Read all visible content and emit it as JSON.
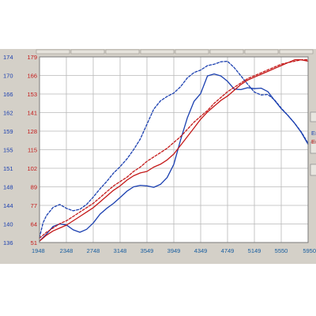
{
  "window": {
    "background": "#d4d0c8",
    "plot_background": "#ffffff"
  },
  "legend": {
    "items": [
      {
        "label": "Eı",
        "color": "#1a3fb0"
      },
      {
        "label": "Eı",
        "color": "#c41818"
      }
    ]
  },
  "chart_data": {
    "type": "line",
    "title": "",
    "xlabel": "",
    "ylabel": "",
    "grid": true,
    "x_ticks": [
      "1948",
      "2348",
      "2748",
      "3148",
      "3549",
      "3949",
      "4349",
      "4749",
      "5149",
      "5550",
      "5950"
    ],
    "x_range": [
      1948,
      5950
    ],
    "y_left_ticks": [
      "136",
      "140",
      "144",
      "148",
      "151",
      "155",
      "159",
      "162",
      "166",
      "170",
      "174"
    ],
    "y_left_range": [
      136,
      174
    ],
    "y_left_color": "#1a3fb0",
    "y_right_ticks": [
      "51",
      "64",
      "77",
      "89",
      "102",
      "115",
      "128",
      "141",
      "153",
      "166",
      "179"
    ],
    "y_right_range": [
      51,
      179
    ],
    "y_right_color": "#c41818",
    "series": [
      {
        "axis": "left",
        "color": "#1a3fb0",
        "style": "solid",
        "x": [
          1948,
          2050,
          2150,
          2250,
          2348,
          2450,
          2550,
          2650,
          2748,
          2850,
          2950,
          3050,
          3148,
          3250,
          3350,
          3450,
          3549,
          3650,
          3750,
          3850,
          3949,
          4050,
          4150,
          4250,
          4349,
          4450,
          4550,
          4650,
          4749,
          4850,
          4950,
          5050,
          5149,
          5250,
          5350,
          5450,
          5550,
          5650,
          5750,
          5850,
          5950
        ],
        "y": [
          136.3,
          137.7,
          139.3,
          139.8,
          139.6,
          138.6,
          138.1,
          138.7,
          140.0,
          141.8,
          143.0,
          144.0,
          145.2,
          146.5,
          147.4,
          147.7,
          147.6,
          147.3,
          147.9,
          149.3,
          152.0,
          157.0,
          161.5,
          164.9,
          166.5,
          170.1,
          170.5,
          170.1,
          169.0,
          167.4,
          167.3,
          167.7,
          167.5,
          167.6,
          166.9,
          165.1,
          163.4,
          162.0,
          160.4,
          158.5,
          156.1
        ]
      },
      {
        "axis": "left",
        "color": "#1a3fb0",
        "style": "dashed",
        "x": [
          1948,
          2000,
          2050,
          2150,
          2250,
          2348,
          2450,
          2550,
          2650,
          2748,
          2850,
          2950,
          3050,
          3148,
          3250,
          3350,
          3450,
          3549,
          3650,
          3750,
          3850,
          3949,
          4050,
          4150,
          4250,
          4349,
          4450,
          4550,
          4650,
          4749,
          4850,
          4950,
          5050,
          5149,
          5250,
          5350,
          5450,
          5550,
          5650,
          5750,
          5850,
          5950
        ],
        "y": [
          137.0,
          140.0,
          141.5,
          143.2,
          143.8,
          143.0,
          142.5,
          142.8,
          143.8,
          145.3,
          147.0,
          148.5,
          150.2,
          151.5,
          153.1,
          155.0,
          157.2,
          160.2,
          163.3,
          165.0,
          165.9,
          166.6,
          167.9,
          169.7,
          170.8,
          171.3,
          172.2,
          172.5,
          173.0,
          173.1,
          171.8,
          170.1,
          168.4,
          166.8,
          166.2,
          166.3,
          165.2,
          163.5,
          162.0,
          160.4,
          158.6,
          156.3
        ]
      },
      {
        "axis": "right",
        "color": "#c41818",
        "style": "solid",
        "x": [
          1948,
          2050,
          2150,
          2250,
          2348,
          2450,
          2550,
          2650,
          2748,
          2850,
          2950,
          3050,
          3148,
          3250,
          3350,
          3450,
          3549,
          3650,
          3750,
          3850,
          3949,
          4050,
          4150,
          4250,
          4349,
          4450,
          4550,
          4650,
          4749,
          4850,
          4950,
          5050,
          5149,
          5250,
          5350,
          5450,
          5550,
          5650,
          5750,
          5850,
          5950
        ],
        "y": [
          52,
          56,
          59,
          61,
          63,
          66,
          69,
          72,
          75,
          79,
          83,
          87,
          90,
          94,
          97,
          99,
          100,
          103,
          105,
          108,
          112,
          118,
          124,
          130,
          136,
          141,
          145,
          149,
          152,
          156,
          160,
          163,
          165,
          167,
          169,
          171,
          173,
          175,
          177,
          177,
          176
        ]
      },
      {
        "axis": "right",
        "color": "#c41818",
        "style": "dashed",
        "x": [
          1948,
          2050,
          2150,
          2250,
          2348,
          2450,
          2550,
          2650,
          2748,
          2850,
          2950,
          3050,
          3148,
          3250,
          3350,
          3450,
          3549,
          3650,
          3750,
          3850,
          3949,
          4050,
          4150,
          4250,
          4349,
          4450,
          4550,
          4650,
          4749,
          4850,
          4950,
          5050,
          5149,
          5250,
          5350,
          5450,
          5550,
          5650,
          5750,
          5850,
          5950
        ],
        "y": [
          54,
          58,
          61,
          64,
          66,
          69,
          72,
          75,
          78,
          82,
          86,
          90,
          93,
          96,
          100,
          103,
          107,
          110,
          113,
          116,
          120,
          124,
          129,
          134,
          138,
          142,
          147,
          151,
          155,
          158,
          161,
          164,
          166,
          168,
          170,
          172,
          174,
          175,
          176,
          177,
          177
        ]
      }
    ]
  }
}
